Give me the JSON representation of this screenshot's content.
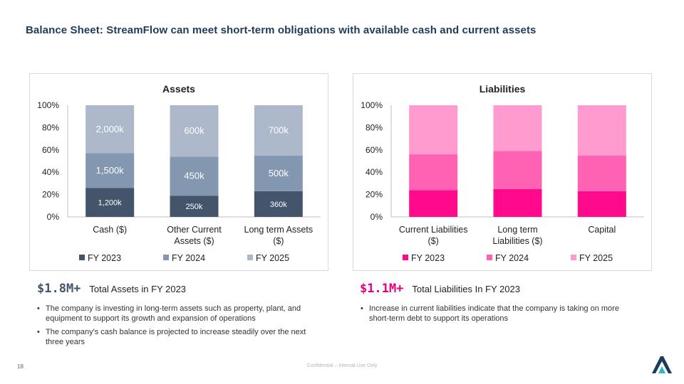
{
  "slide": {
    "title": "Balance Sheet: StreamFlow can meet short-term obligations with available cash and current assets",
    "page_number": "18",
    "footer": "Confidential – Internal Use Only"
  },
  "colors": {
    "title": "#1f3b5a",
    "assets_series": [
      "#44546a",
      "#8497b0",
      "#adb9ca"
    ],
    "liabilities_series": [
      "#ff0a8c",
      "#ff62b3",
      "#ff9bcf"
    ],
    "assets_kpi": "#44546a",
    "liabilities_kpi": "#e6007e",
    "logo_dark": "#1f3b5a",
    "logo_accent": "#2bb5c9"
  },
  "left": {
    "kpi_value": "$1.8M+",
    "kpi_label": "Total Assets in FY 2023",
    "bullets": [
      "The company is investing in long-term assets such as property, plant, and equipment to support its growth and expansion of operations",
      "The company's cash balance is projected to increase steadily over the next three years"
    ]
  },
  "right": {
    "kpi_value": "$1.1M+",
    "kpi_label": "Total Liabilities In FY 2023",
    "bullets": [
      "Increase in current liabilities indicate that the company is taking on more short-term debt to support its operations"
    ]
  },
  "chart_data": [
    {
      "type": "bar",
      "stacked": "percent",
      "title": "Assets",
      "categories": [
        "Cash ($)",
        "Other Current Assets ($)",
        "Long term Assets ($)"
      ],
      "category_lines": [
        [
          "Cash ($)"
        ],
        [
          "Other Current",
          "Assets ($)"
        ],
        [
          "Long term Assets",
          "($)"
        ]
      ],
      "series": [
        {
          "name": "FY 2023",
          "values": [
            26,
            19,
            23
          ],
          "labels": [
            "1,200k",
            "250k",
            "360k"
          ]
        },
        {
          "name": "FY 2024",
          "values": [
            31,
            35,
            32
          ],
          "labels": [
            "1,500k",
            "450k",
            "500k"
          ]
        },
        {
          "name": "FY 2025",
          "values": [
            43,
            46,
            45
          ],
          "labels": [
            "2,000k",
            "600k",
            "700k"
          ]
        }
      ],
      "ylim": [
        0,
        100
      ],
      "yticks": [
        "0%",
        "20%",
        "40%",
        "60%",
        "80%",
        "100%"
      ],
      "grid": false,
      "legend": "bottom"
    },
    {
      "type": "bar",
      "stacked": "percent",
      "title": "Liabilities",
      "categories": [
        "Current Liabilities ($)",
        "Long term Liabilities ($)",
        "Capital"
      ],
      "category_lines": [
        [
          "Current Liabilities",
          "($)"
        ],
        [
          "Long term",
          "Liabilities  ($)"
        ],
        [
          "Capital"
        ]
      ],
      "series": [
        {
          "name": "FY 2023",
          "values": [
            24,
            25,
            23
          ]
        },
        {
          "name": "FY 2024",
          "values": [
            32,
            34,
            32
          ]
        },
        {
          "name": "FY 2025",
          "values": [
            44,
            41,
            45
          ]
        }
      ],
      "ylim": [
        0,
        100
      ],
      "yticks": [
        "0%",
        "20%",
        "40%",
        "60%",
        "80%",
        "100%"
      ],
      "grid": false,
      "legend": "bottom"
    }
  ]
}
